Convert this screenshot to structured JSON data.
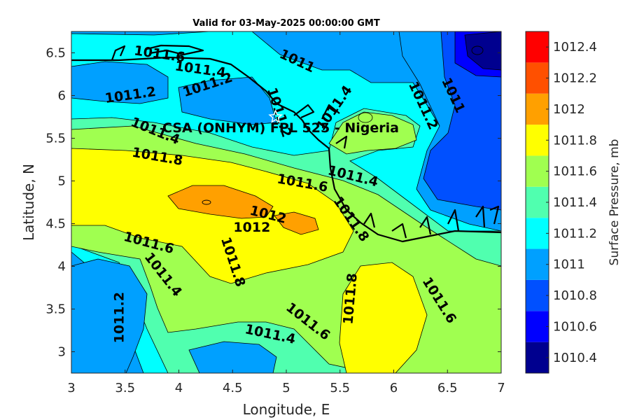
{
  "chart_data": {
    "type": "heatmap",
    "subtype": "filled-contour",
    "title": "Valid for 03-May-2025 00:00:00 GMT",
    "xlabel": "Longitude, E",
    "ylabel": "Latitude, N",
    "xlim": [
      3,
      7
    ],
    "ylim": [
      2.75,
      6.75
    ],
    "xticks": [
      "3",
      "3.5",
      "4",
      "4.5",
      "5",
      "5.5",
      "6",
      "6.5",
      "7"
    ],
    "yticks": [
      "3",
      "3.5",
      "4",
      "4.5",
      "5",
      "5.5",
      "6",
      "6.5"
    ],
    "grid": false,
    "colorbar": {
      "label": "Surface Pressure, mb",
      "levels": [
        1010.4,
        1010.6,
        1010.8,
        1011,
        1011.2,
        1011.4,
        1011.6,
        1011.8,
        1012,
        1012.2,
        1012.4
      ],
      "tick_labels": [
        "1010.4",
        "1010.6",
        "1010.8",
        "1011",
        "1011.2",
        "1011.4",
        "1011.6",
        "1011.8",
        "1012",
        "1012.2",
        "1012.4"
      ],
      "colors": [
        "#00008f",
        "#0000ff",
        "#0050ff",
        "#00a0ff",
        "#00ffff",
        "#50ffaf",
        "#a0ff50",
        "#ffff00",
        "#ffa000",
        "#ff5000",
        "#ff0000"
      ]
    },
    "station": {
      "label": "CSA (ONHYM) FPL 525 - Nigeria",
      "lon": 4.9,
      "lat": 5.75,
      "marker": "star"
    },
    "contour_labels": [
      {
        "text": "1011.6",
        "lon": 3.82,
        "lat": 6.48,
        "angle": 8
      },
      {
        "text": "1011.4",
        "lon": 4.2,
        "lat": 6.3,
        "angle": 8
      },
      {
        "text": "1011.2",
        "lon": 4.27,
        "lat": 6.12,
        "angle": -18
      },
      {
        "text": "1011",
        "lon": 5.1,
        "lat": 6.4,
        "angle": 25
      },
      {
        "text": "1011.2",
        "lon": 3.55,
        "lat": 6.0,
        "angle": -8
      },
      {
        "text": "1011.2",
        "lon": 4.93,
        "lat": 5.8,
        "angle": 72
      },
      {
        "text": "1011.4",
        "lon": 5.45,
        "lat": 5.85,
        "angle": -55
      },
      {
        "text": "1011.2",
        "lon": 6.27,
        "lat": 5.88,
        "angle": 65
      },
      {
        "text": "1011",
        "lon": 6.55,
        "lat": 6.0,
        "angle": 65
      },
      {
        "text": "1011.4",
        "lon": 3.78,
        "lat": 5.58,
        "angle": 22
      },
      {
        "text": "1011.8",
        "lon": 3.8,
        "lat": 5.28,
        "angle": 10
      },
      {
        "text": "1011.6",
        "lon": 5.15,
        "lat": 4.97,
        "angle": 10
      },
      {
        "text": "1011.4",
        "lon": 5.62,
        "lat": 5.05,
        "angle": 14
      },
      {
        "text": "1012",
        "lon": 4.83,
        "lat": 4.6,
        "angle": 14
      },
      {
        "text": "1012",
        "lon": 4.68,
        "lat": 4.45,
        "angle": 0
      },
      {
        "text": "1011.8",
        "lon": 5.6,
        "lat": 4.55,
        "angle": 55
      },
      {
        "text": "1011.6",
        "lon": 3.72,
        "lat": 4.27,
        "angle": 15
      },
      {
        "text": "1011.8",
        "lon": 4.5,
        "lat": 4.05,
        "angle": 72
      },
      {
        "text": "1011.4",
        "lon": 3.85,
        "lat": 3.9,
        "angle": 52
      },
      {
        "text": "1011.2",
        "lon": 3.45,
        "lat": 3.4,
        "angle": -90
      },
      {
        "text": "1011.8",
        "lon": 5.6,
        "lat": 3.62,
        "angle": -85
      },
      {
        "text": "1011.6",
        "lon": 6.42,
        "lat": 3.6,
        "angle": 58
      },
      {
        "text": "1011.6",
        "lon": 5.2,
        "lat": 3.35,
        "angle": 38
      },
      {
        "text": "1011.4",
        "lon": 4.85,
        "lat": 3.2,
        "angle": 12
      }
    ]
  }
}
